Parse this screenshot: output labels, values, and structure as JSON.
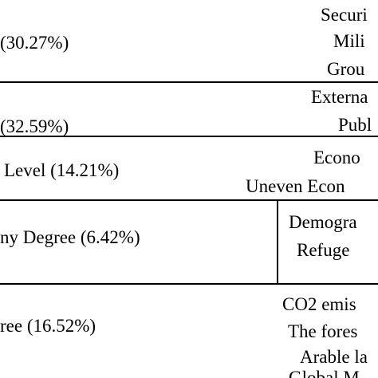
{
  "table": {
    "rows": [
      {
        "left": "(30.27%)",
        "right": [
          "Securi",
          "Mili",
          "Grou"
        ]
      },
      {
        "left": "(32.59%)",
        "right": [
          "Externa",
          "Publ"
        ]
      },
      {
        "left": "Level (14.21%)",
        "right": [
          "Econo",
          "Uneven Econ"
        ]
      },
      {
        "left": "ny Degree (6.42%)",
        "right": [
          "Demogra",
          "Refuge"
        ]
      },
      {
        "left": "ree (16.52%)",
        "right": [
          "CO2 emis",
          "The fores",
          "Arable la",
          "Global M"
        ]
      }
    ]
  }
}
